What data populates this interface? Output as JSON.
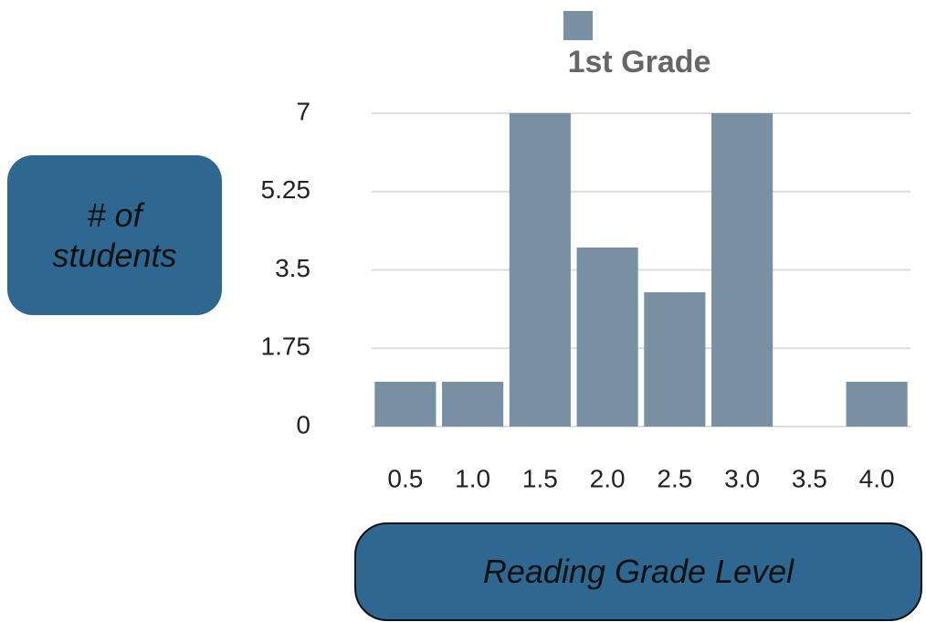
{
  "chart_data": {
    "type": "bar",
    "legend": "1st Grade",
    "ylabel": "# of students",
    "xlabel": "Reading Grade Level",
    "categories": [
      "0.5",
      "1.0",
      "1.5",
      "2.0",
      "2.5",
      "3.0",
      "3.5",
      "4.0"
    ],
    "values": [
      1,
      1,
      7,
      4,
      3,
      7,
      0,
      1
    ],
    "color": "#7890a1",
    "ylim": [
      0,
      7
    ],
    "yticks": [
      0,
      1.75,
      3.5,
      5.25,
      7
    ],
    "grid": true
  }
}
